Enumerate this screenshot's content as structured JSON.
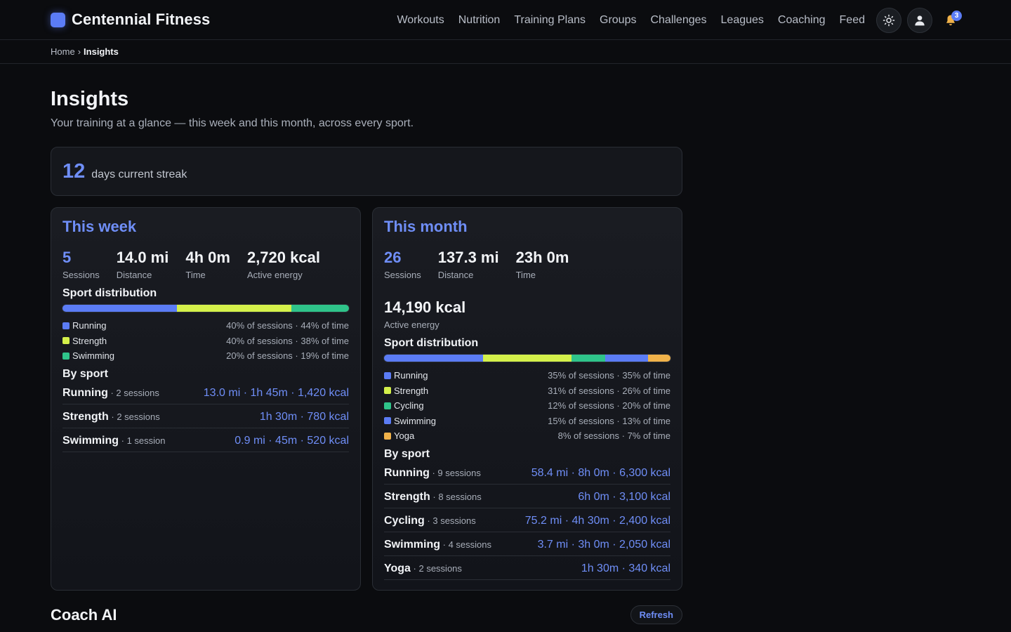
{
  "header": {
    "brand": "Centennial Fitness",
    "nav": [
      "Workouts",
      "Nutrition",
      "Training Plans",
      "Groups",
      "Challenges",
      "Leagues",
      "Coaching",
      "Feed"
    ],
    "theme_icon": "sun-icon",
    "profile_icon": "user-icon",
    "bell_icon": "bell-icon",
    "notifications": "3"
  },
  "breadcrumb": {
    "home": "Home",
    "sep": "›",
    "current": "Insights"
  },
  "page": {
    "title": "Insights",
    "subtitle": "Your training at a glance — this week and this month, across every sport."
  },
  "streak": {
    "value": "12",
    "label": "days current streak"
  },
  "week": {
    "title": "This week",
    "stats": [
      {
        "value": "5",
        "label": "Sessions"
      },
      {
        "value": "14.0 mi",
        "label": "Distance"
      },
      {
        "value": "4h 0m",
        "label": "Time"
      },
      {
        "value": "2,720 kcal",
        "label": "Active energy"
      }
    ],
    "distribution_title": "Sport distribution",
    "distribution": [
      {
        "name": "Running",
        "color": "#5b7cf5",
        "share": 40,
        "sessions_pct": "40% of sessions",
        "time_pct": "44% of time"
      },
      {
        "name": "Strength",
        "color": "#d4f04a",
        "share": 40,
        "sessions_pct": "40% of sessions",
        "time_pct": "38% of time"
      },
      {
        "name": "Swimming",
        "color": "#2fc48a",
        "share": 20,
        "sessions_pct": "20% of sessions",
        "time_pct": "19% of time"
      }
    ],
    "by_sport_title": "By sport",
    "by_sport": [
      {
        "name": "Running",
        "sessions": "2 sessions",
        "metrics": "13.0 mi · 1h 45m · 1,420 kcal"
      },
      {
        "name": "Strength",
        "sessions": "2 sessions",
        "metrics": "1h 30m · 780 kcal"
      },
      {
        "name": "Swimming",
        "sessions": "1 session",
        "metrics": "0.9 mi · 45m · 520 kcal"
      }
    ]
  },
  "month": {
    "title": "This month",
    "stats": [
      {
        "value": "26",
        "label": "Sessions"
      },
      {
        "value": "137.3 mi",
        "label": "Distance"
      },
      {
        "value": "23h 0m",
        "label": "Time"
      }
    ],
    "energy": {
      "value": "14,190 kcal",
      "label": "Active energy"
    },
    "distribution_title": "Sport distribution",
    "distribution": [
      {
        "name": "Running",
        "color": "#5b7cf5",
        "share": 35,
        "sessions_pct": "35% of sessions",
        "time_pct": "35% of time"
      },
      {
        "name": "Strength",
        "color": "#d4f04a",
        "share": 31,
        "sessions_pct": "31% of sessions",
        "time_pct": "26% of time"
      },
      {
        "name": "Cycling",
        "color": "#2fc48a",
        "share": 12,
        "sessions_pct": "12% of sessions",
        "time_pct": "20% of time"
      },
      {
        "name": "Swimming",
        "color": "#5b7cf5",
        "share": 15,
        "sessions_pct": "15% of sessions",
        "time_pct": "13% of time"
      },
      {
        "name": "Yoga",
        "color": "#f0b24a",
        "share": 8,
        "sessions_pct": "8% of sessions",
        "time_pct": "7% of time"
      }
    ],
    "by_sport_title": "By sport",
    "by_sport": [
      {
        "name": "Running",
        "sessions": "9 sessions",
        "metrics": "58.4 mi · 8h 0m · 6,300 kcal"
      },
      {
        "name": "Strength",
        "sessions": "8 sessions",
        "metrics": "6h 0m · 3,100 kcal"
      },
      {
        "name": "Cycling",
        "sessions": "3 sessions",
        "metrics": "75.2 mi · 4h 30m · 2,400 kcal"
      },
      {
        "name": "Swimming",
        "sessions": "4 sessions",
        "metrics": "3.7 mi · 3h 0m · 2,050 kcal"
      },
      {
        "name": "Yoga",
        "sessions": "2 sessions",
        "metrics": "1h 30m · 340 kcal"
      }
    ]
  },
  "coach": {
    "title": "Coach AI",
    "refresh_label": "Refresh"
  }
}
